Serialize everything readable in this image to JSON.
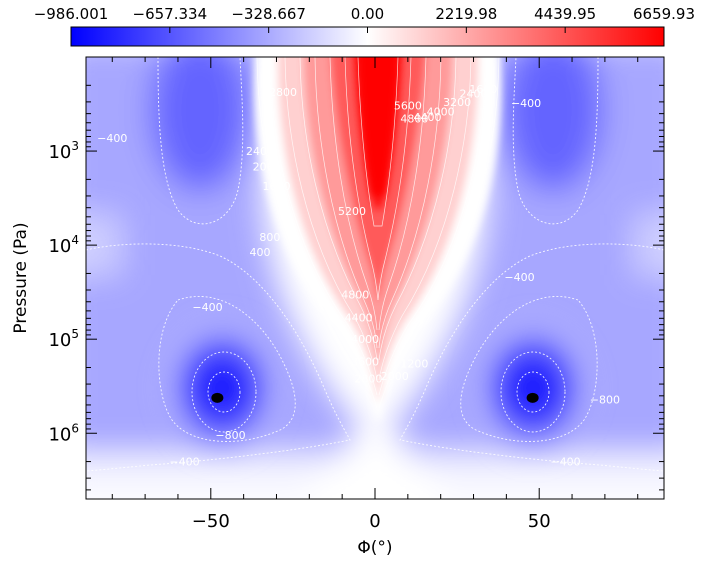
{
  "chart_data": {
    "type": "heatmap",
    "xlabel": "Φ(°)",
    "ylabel": "Pressure (Pa)",
    "x_ticks": [
      {
        "value": -50,
        "label": "−50"
      },
      {
        "value": 0,
        "label": "0"
      },
      {
        "value": 50,
        "label": "50"
      }
    ],
    "y_ticks": [
      {
        "value": 1000,
        "base": "10",
        "exponent": "3"
      },
      {
        "value": 10000,
        "base": "10",
        "exponent": "4"
      },
      {
        "value": 100000,
        "base": "10",
        "exponent": "5"
      },
      {
        "value": 1000000,
        "base": "10",
        "exponent": "6"
      }
    ],
    "xlim": [
      -88,
      88
    ],
    "ylim": [
      100,
      5000000
    ],
    "y_scale": "log",
    "y_inverted": true,
    "colorbar": {
      "placement": "top",
      "ticks": [
        "−986.001",
        "−657.334",
        "−328.667",
        "0.00",
        "2219.98",
        "4439.95",
        "6659.93"
      ],
      "min": -986.001,
      "max": 6659.93,
      "colors": {
        "negative": "#0000ff",
        "zero": "#ffffff",
        "positive": "#ff0000"
      }
    },
    "minima": [
      {
        "lat": -48,
        "pressure": 420000,
        "value": -986.001
      },
      {
        "lat": 48,
        "pressure": 420000,
        "value": -986.001
      }
    ],
    "contour_labels": [
      {
        "text": "−400",
        "lat": -80,
        "pressure": 800
      },
      {
        "text": "−400",
        "lat": -51,
        "pressure": 50000
      },
      {
        "text": "−800",
        "lat": -44,
        "pressure": 1150000
      },
      {
        "text": "−400",
        "lat": -58,
        "pressure": 2200000
      },
      {
        "text": "−400",
        "lat": 44,
        "pressure": 24000
      },
      {
        "text": "−800",
        "lat": 70,
        "pressure": 480000
      },
      {
        "text": "−400",
        "lat": 58,
        "pressure": 2200000
      },
      {
        "text": "−400",
        "lat": 46,
        "pressure": 340
      },
      {
        "text": "2800",
        "lat": -28,
        "pressure": 260
      },
      {
        "text": "2400",
        "lat": -35,
        "pressure": 1100
      },
      {
        "text": "2000",
        "lat": -33,
        "pressure": 1600
      },
      {
        "text": "1600",
        "lat": -30,
        "pressure": 2600
      },
      {
        "text": "800",
        "lat": -32,
        "pressure": 9000
      },
      {
        "text": "400",
        "lat": -35,
        "pressure": 13000
      },
      {
        "text": "5200",
        "lat": -7,
        "pressure": 4800
      },
      {
        "text": "4800",
        "lat": -6,
        "pressure": 37000
      },
      {
        "text": "4400",
        "lat": -5,
        "pressure": 65000
      },
      {
        "text": "4000",
        "lat": -3,
        "pressure": 110000
      },
      {
        "text": "3600",
        "lat": -3,
        "pressure": 190000
      },
      {
        "text": "2800",
        "lat": -2,
        "pressure": 290000
      },
      {
        "text": "2000",
        "lat": 6,
        "pressure": 270000
      },
      {
        "text": "1200",
        "lat": 12,
        "pressure": 200000
      },
      {
        "text": "5600",
        "lat": 10,
        "pressure": 360
      },
      {
        "text": "4800",
        "lat": 12,
        "pressure": 500
      },
      {
        "text": "4400",
        "lat": 16,
        "pressure": 480
      },
      {
        "text": "4000",
        "lat": 20,
        "pressure": 420
      },
      {
        "text": "3200",
        "lat": 25,
        "pressure": 330
      },
      {
        "text": "2400",
        "lat": 30,
        "pressure": 270
      },
      {
        "text": "1600",
        "lat": 33,
        "pressure": 240
      }
    ]
  }
}
